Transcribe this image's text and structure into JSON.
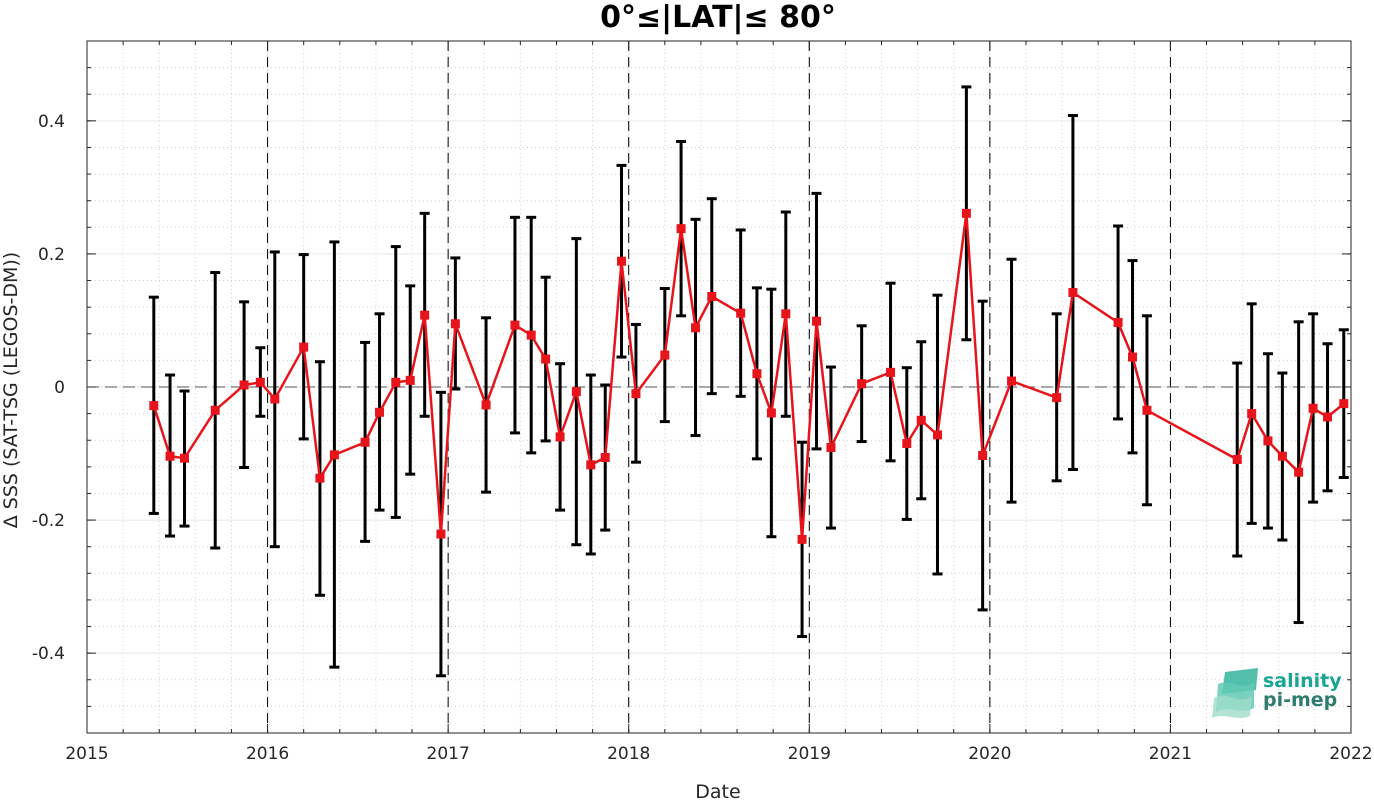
{
  "chart_data": {
    "type": "line",
    "title": "0°≤|LAT|≤ 80°",
    "xlabel": "Date",
    "ylabel": "Δ SSS (SAT-TSG (LEGOS-DM))",
    "xlim": [
      2015,
      2022
    ],
    "ylim": [
      -0.52,
      0.52
    ],
    "xticks": [
      "2015",
      "2016",
      "2017",
      "2018",
      "2019",
      "2020",
      "2021",
      "2022"
    ],
    "yticks": [
      "0.4",
      "0.2",
      "0",
      "-0.2",
      "-0.4"
    ],
    "ytick_values": [
      0.4,
      0.2,
      0,
      -0.2,
      -0.4
    ],
    "grid": true,
    "reference_line": 0,
    "year_boundaries": [
      2016,
      2017,
      2018,
      2019,
      2020,
      2021
    ],
    "series": [
      {
        "color": "#e8141c",
        "error_color": "#000000",
        "points": [
          {
            "x": 2015.37,
            "y": -0.028,
            "lo": -0.19,
            "hi": 0.135
          },
          {
            "x": 2015.46,
            "y": -0.104,
            "lo": -0.224,
            "hi": 0.018
          },
          {
            "x": 2015.54,
            "y": -0.107,
            "lo": -0.209,
            "hi": -0.006
          },
          {
            "x": 2015.71,
            "y": -0.035,
            "lo": -0.242,
            "hi": 0.172
          },
          {
            "x": 2015.87,
            "y": 0.003,
            "lo": -0.121,
            "hi": 0.128
          },
          {
            "x": 2015.96,
            "y": 0.007,
            "lo": -0.044,
            "hi": 0.059
          },
          {
            "x": 2016.04,
            "y": -0.018,
            "lo": -0.24,
            "hi": 0.203
          },
          {
            "x": 2016.2,
            "y": 0.06,
            "lo": -0.078,
            "hi": 0.199
          },
          {
            "x": 2016.29,
            "y": -0.137,
            "lo": -0.313,
            "hi": 0.038
          },
          {
            "x": 2016.37,
            "y": -0.102,
            "lo": -0.421,
            "hi": 0.218
          },
          {
            "x": 2016.54,
            "y": -0.083,
            "lo": -0.232,
            "hi": 0.067
          },
          {
            "x": 2016.62,
            "y": -0.038,
            "lo": -0.185,
            "hi": 0.11
          },
          {
            "x": 2016.71,
            "y": 0.007,
            "lo": -0.196,
            "hi": 0.211
          },
          {
            "x": 2016.79,
            "y": 0.01,
            "lo": -0.131,
            "hi": 0.152
          },
          {
            "x": 2016.87,
            "y": 0.108,
            "lo": -0.044,
            "hi": 0.261
          },
          {
            "x": 2016.96,
            "y": -0.221,
            "lo": -0.434,
            "hi": -0.008
          },
          {
            "x": 2017.04,
            "y": 0.095,
            "lo": -0.003,
            "hi": 0.194
          },
          {
            "x": 2017.21,
            "y": -0.027,
            "lo": -0.158,
            "hi": 0.104
          },
          {
            "x": 2017.37,
            "y": 0.093,
            "lo": -0.069,
            "hi": 0.255
          },
          {
            "x": 2017.46,
            "y": 0.078,
            "lo": -0.099,
            "hi": 0.255
          },
          {
            "x": 2017.54,
            "y": 0.042,
            "lo": -0.081,
            "hi": 0.165
          },
          {
            "x": 2017.62,
            "y": -0.075,
            "lo": -0.185,
            "hi": 0.035
          },
          {
            "x": 2017.71,
            "y": -0.007,
            "lo": -0.237,
            "hi": 0.223
          },
          {
            "x": 2017.79,
            "y": -0.117,
            "lo": -0.251,
            "hi": 0.018
          },
          {
            "x": 2017.87,
            "y": -0.106,
            "lo": -0.215,
            "hi": 0.003
          },
          {
            "x": 2017.96,
            "y": 0.189,
            "lo": 0.045,
            "hi": 0.333
          },
          {
            "x": 2018.04,
            "y": -0.01,
            "lo": -0.113,
            "hi": 0.094
          },
          {
            "x": 2018.2,
            "y": 0.048,
            "lo": -0.052,
            "hi": 0.148
          },
          {
            "x": 2018.29,
            "y": 0.238,
            "lo": 0.107,
            "hi": 0.369
          },
          {
            "x": 2018.37,
            "y": 0.089,
            "lo": -0.073,
            "hi": 0.252
          },
          {
            "x": 2018.46,
            "y": 0.136,
            "lo": -0.01,
            "hi": 0.283
          },
          {
            "x": 2018.62,
            "y": 0.111,
            "lo": -0.014,
            "hi": 0.236
          },
          {
            "x": 2018.71,
            "y": 0.02,
            "lo": -0.108,
            "hi": 0.149
          },
          {
            "x": 2018.79,
            "y": -0.039,
            "lo": -0.225,
            "hi": 0.147
          },
          {
            "x": 2018.87,
            "y": 0.11,
            "lo": -0.044,
            "hi": 0.263
          },
          {
            "x": 2018.96,
            "y": -0.229,
            "lo": -0.375,
            "hi": -0.083
          },
          {
            "x": 2019.04,
            "y": 0.099,
            "lo": -0.093,
            "hi": 0.291
          },
          {
            "x": 2019.12,
            "y": -0.091,
            "lo": -0.212,
            "hi": 0.03
          },
          {
            "x": 2019.29,
            "y": 0.005,
            "lo": -0.082,
            "hi": 0.092
          },
          {
            "x": 2019.45,
            "y": 0.022,
            "lo": -0.111,
            "hi": 0.156
          },
          {
            "x": 2019.54,
            "y": -0.085,
            "lo": -0.199,
            "hi": 0.029
          },
          {
            "x": 2019.62,
            "y": -0.05,
            "lo": -0.168,
            "hi": 0.068
          },
          {
            "x": 2019.71,
            "y": -0.072,
            "lo": -0.281,
            "hi": 0.138
          },
          {
            "x": 2019.87,
            "y": 0.261,
            "lo": 0.071,
            "hi": 0.451
          },
          {
            "x": 2019.96,
            "y": -0.103,
            "lo": -0.335,
            "hi": 0.129
          },
          {
            "x": 2020.12,
            "y": 0.009,
            "lo": -0.173,
            "hi": 0.192
          },
          {
            "x": 2020.37,
            "y": -0.016,
            "lo": -0.141,
            "hi": 0.11
          },
          {
            "x": 2020.46,
            "y": 0.142,
            "lo": -0.124,
            "hi": 0.408
          },
          {
            "x": 2020.71,
            "y": 0.097,
            "lo": -0.048,
            "hi": 0.242
          },
          {
            "x": 2020.79,
            "y": 0.045,
            "lo": -0.099,
            "hi": 0.19
          },
          {
            "x": 2020.87,
            "y": -0.035,
            "lo": -0.177,
            "hi": 0.107
          },
          {
            "x": 2021.37,
            "y": -0.109,
            "lo": -0.254,
            "hi": 0.036
          },
          {
            "x": 2021.45,
            "y": -0.04,
            "lo": -0.205,
            "hi": 0.125
          },
          {
            "x": 2021.54,
            "y": -0.081,
            "lo": -0.212,
            "hi": 0.05
          },
          {
            "x": 2021.62,
            "y": -0.104,
            "lo": -0.23,
            "hi": 0.021
          },
          {
            "x": 2021.71,
            "y": -0.128,
            "lo": -0.354,
            "hi": 0.098
          },
          {
            "x": 2021.79,
            "y": -0.032,
            "lo": -0.173,
            "hi": 0.11
          },
          {
            "x": 2021.87,
            "y": -0.045,
            "lo": -0.156,
            "hi": 0.065
          },
          {
            "x": 2021.96,
            "y": -0.025,
            "lo": -0.136,
            "hi": 0.086
          }
        ]
      }
    ]
  },
  "logo": {
    "line1": "salinity",
    "line2": "pi-mep",
    "color1": "#1aa595",
    "color2": "#2e7d6e"
  }
}
